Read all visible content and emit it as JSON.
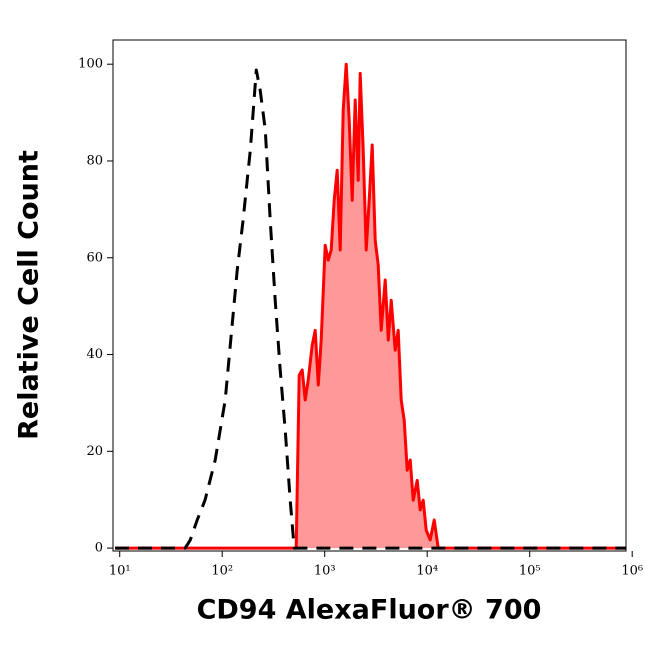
{
  "chart_data": {
    "type": "histogram-overlay",
    "x_label": "CD94 AlexaFluor® 700",
    "y_label": "Relative Cell Count",
    "xscale": "log",
    "xlim": [
      8.6,
      870000
    ],
    "ylim": [
      -0.6,
      105
    ],
    "xticks": [
      {
        "value": 10,
        "label": "10¹"
      },
      {
        "value": 100,
        "label": "10²"
      },
      {
        "value": 1000,
        "label": "10³"
      },
      {
        "value": 10000,
        "label": "10⁴"
      },
      {
        "value": 100000,
        "label": "10⁵"
      },
      {
        "value": 1000000,
        "label": "10⁶"
      }
    ],
    "yticks": [
      0,
      20,
      40,
      60,
      80,
      100
    ],
    "series": [
      {
        "color": "#000000",
        "line_style": "dashed",
        "fill": false,
        "x": [
          9,
          20,
          30,
          43.5,
          48.8,
          57,
          68,
          85.5,
          107,
          140,
          160,
          188,
          215,
          235,
          263,
          294,
          329,
          368,
          412,
          461,
          504,
          1000,
          3000,
          870000
        ],
        "values": [
          0,
          0,
          0,
          0,
          1.7,
          5.8,
          9.9,
          18.2,
          30.6,
          57.4,
          67.8,
          82.2,
          98.8,
          94.6,
          86.4,
          67.8,
          51.2,
          36.8,
          24.4,
          9.9,
          0,
          0,
          0,
          0
        ]
      },
      {
        "color": "#ff0000",
        "line_style": "solid",
        "fill": true,
        "fill_color": "#ff9999",
        "x": [
          9,
          500,
          527,
          564,
          603,
          645,
          690,
          755,
          808,
          865,
          925,
          1012,
          1082,
          1157,
          1239,
          1324,
          1416,
          1515,
          1622,
          1734,
          1854,
          1985,
          2123,
          2219,
          2377,
          2541,
          2718,
          2906,
          3112,
          3327,
          3557,
          3890,
          4169,
          4457,
          4875,
          5212,
          5572,
          5970,
          6383,
          6823,
          7295,
          7980,
          8551,
          9141,
          9772,
          10690,
          11690,
          12790,
          870000
        ],
        "values": [
          0,
          0,
          0,
          35.7,
          36.8,
          30.6,
          34.7,
          41.9,
          45,
          33.7,
          43,
          62.6,
          59.5,
          61.6,
          71.9,
          78.1,
          61.6,
          90.5,
          100,
          88.4,
          71.9,
          92.6,
          76,
          98.1,
          82.2,
          61.6,
          71.9,
          83.3,
          63.6,
          58.5,
          45,
          55.4,
          43,
          51.2,
          40.9,
          45,
          30.6,
          26.4,
          16.1,
          18.2,
          9.9,
          14,
          7.9,
          9.9,
          3.7,
          1.7,
          5.8,
          0,
          0
        ]
      }
    ]
  }
}
